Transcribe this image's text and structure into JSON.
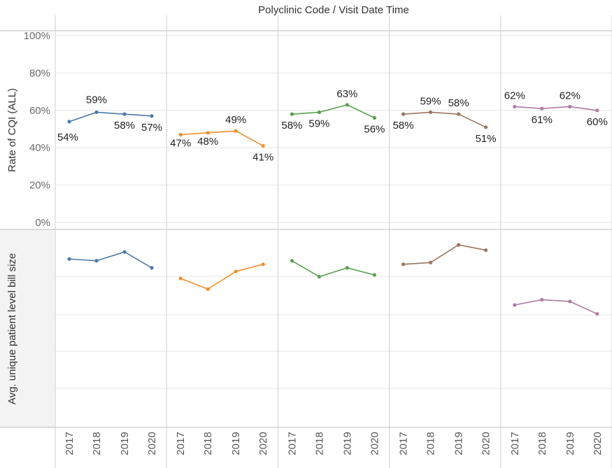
{
  "header": {
    "title": "Polyclinic Code  /  Visit Date Time"
  },
  "colors": {
    "series": [
      "#4e79a7",
      "#f28e2b",
      "#59a14f",
      "#9c755f",
      "#b07aa1"
    ],
    "left_axis_bg": "#f3f3f3",
    "gridline": "#e6e6e6",
    "divider": "#cfcfcf"
  },
  "chart_data": [
    {
      "type": "line",
      "title": "",
      "xlabel": "",
      "ylabel": "Rate of CQI (ALL)",
      "categories": [
        "2017",
        "2018",
        "2019",
        "2020"
      ],
      "ylim": [
        0,
        100
      ],
      "yticks": [
        "0%",
        "20%",
        "40%",
        "60%",
        "80%",
        "100%"
      ],
      "ytick_values": [
        0,
        20,
        40,
        60,
        80,
        100
      ],
      "panels": [
        {
          "values": [
            54,
            59,
            58,
            57
          ],
          "labels": [
            "54%",
            "59%",
            "58%",
            "57%"
          ]
        },
        {
          "values": [
            47,
            48,
            49,
            41
          ],
          "labels": [
            "47%",
            "48%",
            "49%",
            "41%"
          ]
        },
        {
          "values": [
            58,
            59,
            63,
            56
          ],
          "labels": [
            "58%",
            "59%",
            "63%",
            "56%"
          ]
        },
        {
          "values": [
            58,
            59,
            58,
            51
          ],
          "labels": [
            "58%",
            "59%",
            "58%",
            "51%"
          ]
        },
        {
          "values": [
            62,
            61,
            62,
            60
          ],
          "labels": [
            "62%",
            "61%",
            "62%",
            "60%"
          ]
        }
      ],
      "grid": true
    },
    {
      "type": "line",
      "title": "",
      "xlabel": "",
      "ylabel": "Avg. unique patient level bill size",
      "categories": [
        "2017",
        "2018",
        "2019",
        "2020"
      ],
      "ylim": [
        0,
        100
      ],
      "yticks": [],
      "panels": [
        {
          "values": [
            92,
            91,
            96,
            87
          ]
        },
        {
          "values": [
            81,
            75,
            85,
            89
          ]
        },
        {
          "values": [
            91,
            82,
            87,
            83
          ]
        },
        {
          "values": [
            89,
            90,
            100,
            97
          ]
        },
        {
          "values": [
            66,
            69,
            68,
            61
          ]
        }
      ],
      "grid": true
    }
  ]
}
